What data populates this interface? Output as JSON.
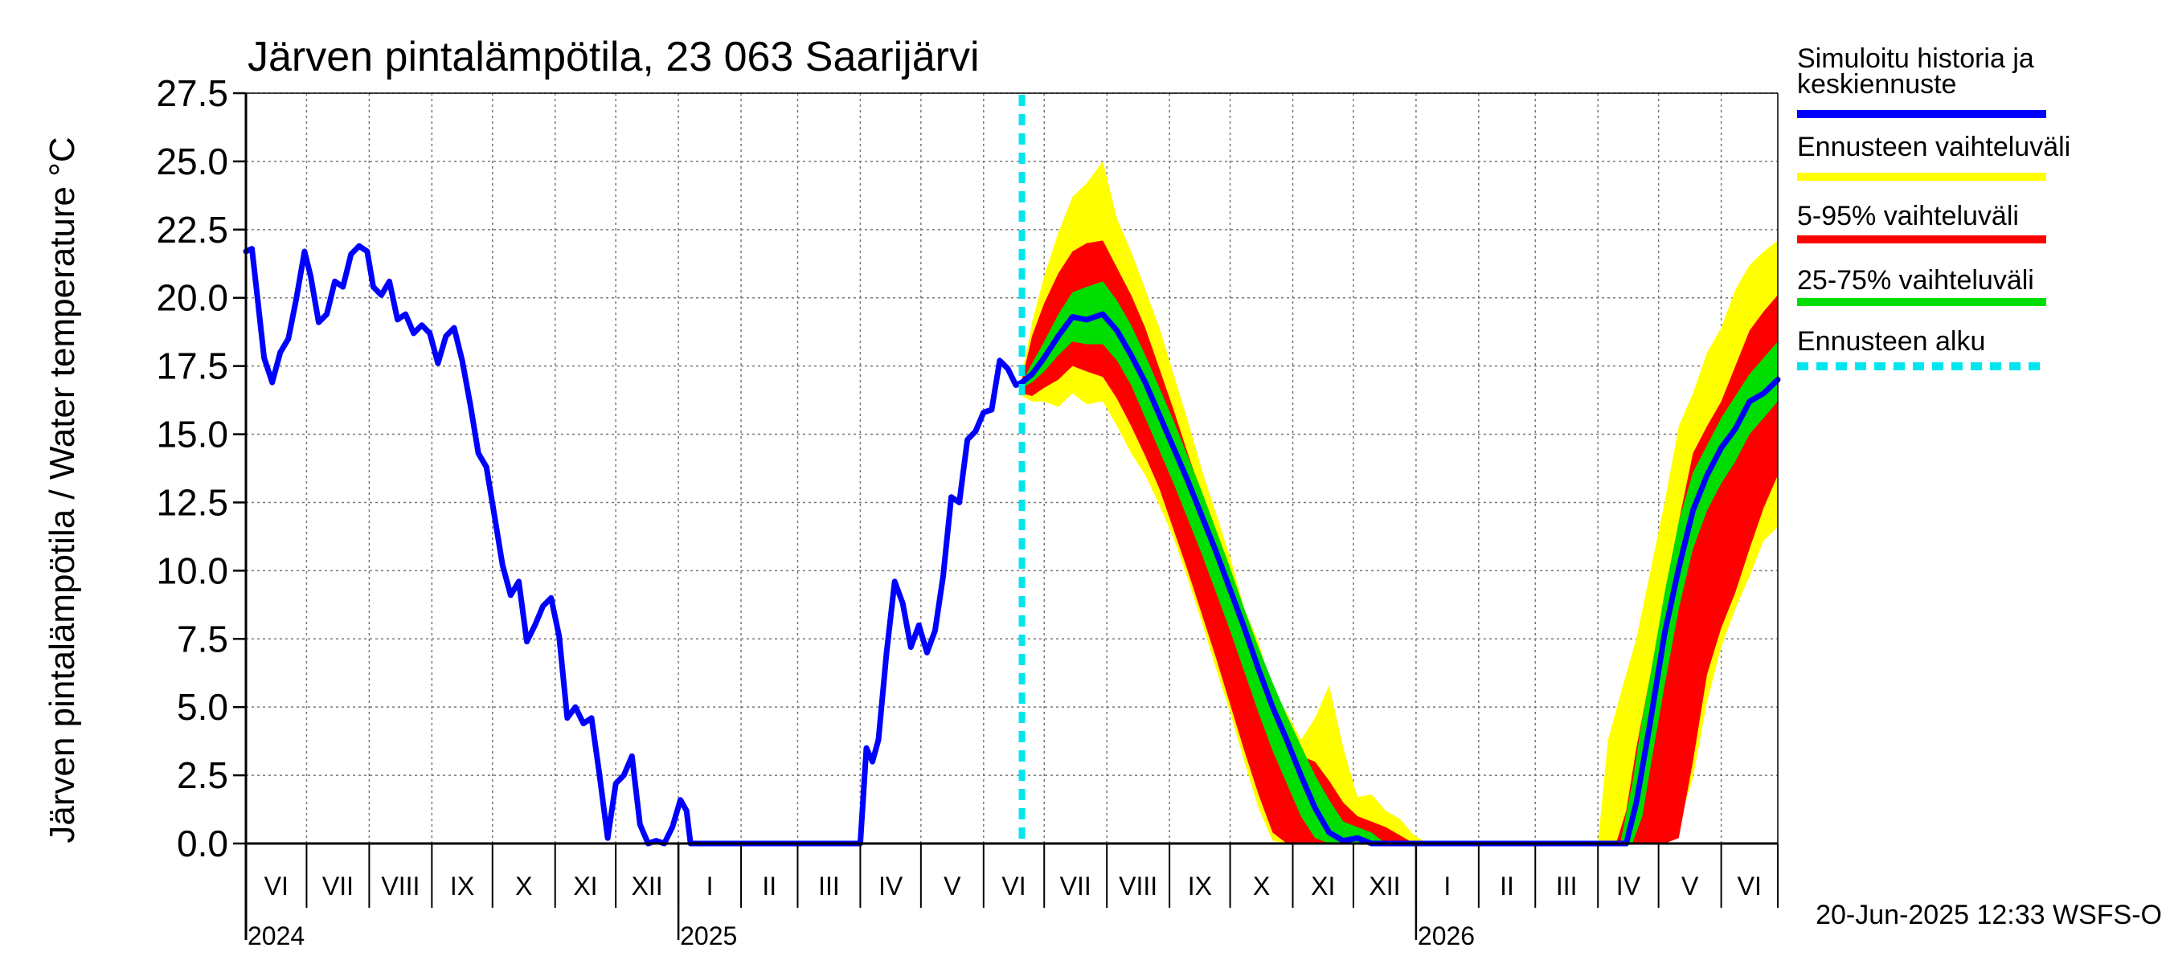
{
  "chart_data": {
    "type": "area",
    "title": "Järven pintalämpötila, 23 063 Saarijärvi",
    "ylabel": "Järven pintalämpötila / Water temperature °C",
    "xlabel": "",
    "ylim": [
      0,
      27.5
    ],
    "xlim": [
      "2024-06-01",
      "2026-06-29"
    ],
    "grid": true,
    "yticks": [
      "0.0",
      "2.5",
      "5.0",
      "7.5",
      "10.0",
      "12.5",
      "15.0",
      "17.5",
      "20.0",
      "22.5",
      "25.0",
      "27.5"
    ],
    "months": [
      {
        "label": "VI",
        "start": "2024-06-01",
        "end": "2024-07-01"
      },
      {
        "label": "VII",
        "start": "2024-07-01",
        "end": "2024-08-01"
      },
      {
        "label": "VIII",
        "start": "2024-08-01",
        "end": "2024-09-01"
      },
      {
        "label": "IX",
        "start": "2024-09-01",
        "end": "2024-10-01"
      },
      {
        "label": "X",
        "start": "2024-10-01",
        "end": "2024-11-01"
      },
      {
        "label": "XI",
        "start": "2024-11-01",
        "end": "2024-12-01"
      },
      {
        "label": "XII",
        "start": "2024-12-01",
        "end": "2025-01-01"
      },
      {
        "label": "I",
        "start": "2025-01-01",
        "end": "2025-02-01"
      },
      {
        "label": "II",
        "start": "2025-02-01",
        "end": "2025-03-01"
      },
      {
        "label": "III",
        "start": "2025-03-01",
        "end": "2025-04-01"
      },
      {
        "label": "IV",
        "start": "2025-04-01",
        "end": "2025-05-01"
      },
      {
        "label": "V",
        "start": "2025-05-01",
        "end": "2025-06-01"
      },
      {
        "label": "VI",
        "start": "2025-06-01",
        "end": "2025-07-01"
      },
      {
        "label": "VII",
        "start": "2025-07-01",
        "end": "2025-08-01"
      },
      {
        "label": "VIII",
        "start": "2025-08-01",
        "end": "2025-09-01"
      },
      {
        "label": "IX",
        "start": "2025-09-01",
        "end": "2025-10-01"
      },
      {
        "label": "X",
        "start": "2025-10-01",
        "end": "2025-11-01"
      },
      {
        "label": "XI",
        "start": "2025-11-01",
        "end": "2025-12-01"
      },
      {
        "label": "XII",
        "start": "2025-12-01",
        "end": "2026-01-01"
      },
      {
        "label": "I",
        "start": "2026-01-01",
        "end": "2026-02-01"
      },
      {
        "label": "II",
        "start": "2026-02-01",
        "end": "2026-03-01"
      },
      {
        "label": "III",
        "start": "2026-03-01",
        "end": "2026-04-01"
      },
      {
        "label": "IV",
        "start": "2026-04-01",
        "end": "2026-05-01"
      },
      {
        "label": "V",
        "start": "2026-05-01",
        "end": "2026-06-01"
      },
      {
        "label": "VI",
        "start": "2026-06-01",
        "end": "2026-06-29"
      }
    ],
    "years": [
      {
        "label": "2024",
        "date": "2024-06-01"
      },
      {
        "label": "2025",
        "date": "2025-01-01"
      },
      {
        "label": "2026",
        "date": "2026-01-01"
      }
    ],
    "forecast_start": "2025-06-20",
    "legend_position": "right",
    "legend": [
      {
        "label": "Simuloitu historia ja keskiennuste",
        "color": "#0000ff",
        "style": "solid"
      },
      {
        "label": "Ennusteen vaihteluväli",
        "color": "#ffff00",
        "style": "solid"
      },
      {
        "label": "5-95% vaihteluväli",
        "color": "#ff0000",
        "style": "solid"
      },
      {
        "label": "25-75% vaihteluväli",
        "color": "#00dd00",
        "style": "solid"
      },
      {
        "label": "Ennusteen alku",
        "color": "#00e5ee",
        "style": "dashed"
      }
    ],
    "footer": "20-Jun-2025 12:33 WSFS-O",
    "series": [
      {
        "name": "Simuloitu historia ja keskiennuste",
        "color": "#0000ff",
        "points": [
          [
            "2024-06-01",
            21.7
          ],
          [
            "2024-06-04",
            21.8
          ],
          [
            "2024-06-07",
            19.8
          ],
          [
            "2024-06-10",
            17.8
          ],
          [
            "2024-06-14",
            16.9
          ],
          [
            "2024-06-18",
            18.0
          ],
          [
            "2024-06-22",
            18.5
          ],
          [
            "2024-06-26",
            20.0
          ],
          [
            "2024-06-30",
            21.7
          ],
          [
            "2024-07-03",
            20.8
          ],
          [
            "2024-07-07",
            19.1
          ],
          [
            "2024-07-11",
            19.4
          ],
          [
            "2024-07-15",
            20.6
          ],
          [
            "2024-07-19",
            20.4
          ],
          [
            "2024-07-23",
            21.6
          ],
          [
            "2024-07-27",
            21.9
          ],
          [
            "2024-07-31",
            21.7
          ],
          [
            "2024-08-03",
            20.4
          ],
          [
            "2024-08-07",
            20.1
          ],
          [
            "2024-08-11",
            20.6
          ],
          [
            "2024-08-15",
            19.2
          ],
          [
            "2024-08-19",
            19.4
          ],
          [
            "2024-08-23",
            18.7
          ],
          [
            "2024-08-27",
            19.0
          ],
          [
            "2024-08-31",
            18.7
          ],
          [
            "2024-09-04",
            17.6
          ],
          [
            "2024-09-08",
            18.6
          ],
          [
            "2024-09-12",
            18.9
          ],
          [
            "2024-09-16",
            17.7
          ],
          [
            "2024-09-20",
            16.1
          ],
          [
            "2024-09-24",
            14.3
          ],
          [
            "2024-09-28",
            13.8
          ],
          [
            "2024-10-02",
            12.0
          ],
          [
            "2024-10-06",
            10.2
          ],
          [
            "2024-10-10",
            9.1
          ],
          [
            "2024-10-14",
            9.6
          ],
          [
            "2024-10-18",
            7.4
          ],
          [
            "2024-10-22",
            8.0
          ],
          [
            "2024-10-26",
            8.7
          ],
          [
            "2024-10-30",
            9.0
          ],
          [
            "2024-11-03",
            7.6
          ],
          [
            "2024-11-07",
            4.6
          ],
          [
            "2024-11-11",
            5.0
          ],
          [
            "2024-11-15",
            4.4
          ],
          [
            "2024-11-19",
            4.6
          ],
          [
            "2024-11-23",
            2.5
          ],
          [
            "2024-11-27",
            0.2
          ],
          [
            "2024-12-01",
            2.2
          ],
          [
            "2024-12-05",
            2.5
          ],
          [
            "2024-12-09",
            3.2
          ],
          [
            "2024-12-13",
            0.7
          ],
          [
            "2024-12-17",
            0.0
          ],
          [
            "2024-12-21",
            0.1
          ],
          [
            "2024-12-25",
            0.0
          ],
          [
            "2024-12-29",
            0.6
          ],
          [
            "2025-01-02",
            1.6
          ],
          [
            "2025-01-05",
            1.2
          ],
          [
            "2025-01-07",
            0.0
          ],
          [
            "2025-04-01",
            0.0
          ],
          [
            "2025-04-04",
            3.5
          ],
          [
            "2025-04-07",
            3.0
          ],
          [
            "2025-04-10",
            3.8
          ],
          [
            "2025-04-14",
            7.0
          ],
          [
            "2025-04-18",
            9.6
          ],
          [
            "2025-04-22",
            8.8
          ],
          [
            "2025-04-26",
            7.2
          ],
          [
            "2025-04-30",
            8.0
          ],
          [
            "2025-05-04",
            7.0
          ],
          [
            "2025-05-08",
            7.8
          ],
          [
            "2025-05-12",
            9.8
          ],
          [
            "2025-05-16",
            12.7
          ],
          [
            "2025-05-20",
            12.5
          ],
          [
            "2025-05-24",
            14.8
          ],
          [
            "2025-05-28",
            15.1
          ],
          [
            "2025-06-01",
            15.8
          ],
          [
            "2025-06-05",
            15.9
          ],
          [
            "2025-06-09",
            17.7
          ],
          [
            "2025-06-13",
            17.4
          ],
          [
            "2025-06-17",
            16.8
          ],
          [
            "2025-06-20",
            16.9
          ],
          [
            "2025-06-25",
            17.2
          ],
          [
            "2025-07-01",
            17.8
          ],
          [
            "2025-07-08",
            18.6
          ],
          [
            "2025-07-15",
            19.3
          ],
          [
            "2025-07-22",
            19.2
          ],
          [
            "2025-07-30",
            19.4
          ],
          [
            "2025-08-06",
            18.8
          ],
          [
            "2025-08-13",
            17.9
          ],
          [
            "2025-08-20",
            16.9
          ],
          [
            "2025-08-27",
            15.7
          ],
          [
            "2025-09-03",
            14.5
          ],
          [
            "2025-09-10",
            13.3
          ],
          [
            "2025-09-17",
            12.0
          ],
          [
            "2025-09-24",
            10.7
          ],
          [
            "2025-10-01",
            9.3
          ],
          [
            "2025-10-08",
            7.9
          ],
          [
            "2025-10-15",
            6.4
          ],
          [
            "2025-10-22",
            5.0
          ],
          [
            "2025-10-29",
            3.8
          ],
          [
            "2025-11-05",
            2.5
          ],
          [
            "2025-11-12",
            1.3
          ],
          [
            "2025-11-19",
            0.4
          ],
          [
            "2025-11-26",
            0.1
          ],
          [
            "2025-12-03",
            0.2
          ],
          [
            "2025-12-10",
            0.0
          ],
          [
            "2026-04-15",
            0.0
          ],
          [
            "2026-04-20",
            1.5
          ],
          [
            "2026-04-27",
            4.5
          ],
          [
            "2026-05-04",
            7.7
          ],
          [
            "2026-05-11",
            10.1
          ],
          [
            "2026-05-18",
            12.2
          ],
          [
            "2026-05-25",
            13.5
          ],
          [
            "2026-06-01",
            14.5
          ],
          [
            "2026-06-08",
            15.2
          ],
          [
            "2026-06-15",
            16.2
          ],
          [
            "2026-06-22",
            16.5
          ],
          [
            "2026-06-29",
            17.0
          ]
        ]
      },
      {
        "name": "Ennusteen vaihteluväli",
        "color": "#ffff00",
        "x": [
          "2025-06-20",
          "2025-06-25",
          "2025-07-01",
          "2025-07-08",
          "2025-07-15",
          "2025-07-22",
          "2025-07-30",
          "2025-08-06",
          "2025-08-13",
          "2025-08-20",
          "2025-08-27",
          "2025-09-03",
          "2025-09-10",
          "2025-09-17",
          "2025-09-24",
          "2025-10-01",
          "2025-10-08",
          "2025-10-15",
          "2025-10-22",
          "2025-10-29",
          "2025-11-05",
          "2025-11-12",
          "2025-11-19",
          "2025-11-26",
          "2025-12-03",
          "2025-12-10",
          "2025-12-17",
          "2025-12-24",
          "2025-12-31",
          "2026-01-07",
          "2026-04-01",
          "2026-04-06",
          "2026-04-13",
          "2026-04-20",
          "2026-04-27",
          "2026-05-04",
          "2026-05-11",
          "2026-05-18",
          "2026-05-25",
          "2026-06-01",
          "2026-06-08",
          "2026-06-15",
          "2026-06-22",
          "2026-06-29"
        ],
        "low": [
          16.4,
          16.2,
          16.2,
          16.0,
          16.5,
          16.1,
          16.2,
          15.3,
          14.3,
          13.5,
          12.4,
          11.2,
          9.7,
          8.1,
          6.4,
          4.8,
          3.0,
          1.3,
          0.1,
          0.0,
          0.0,
          0.0,
          0.0,
          0.0,
          0.0,
          0.0,
          0.0,
          0.0,
          0.0,
          0.0,
          0.0,
          0.0,
          0.0,
          0.0,
          0.0,
          0.0,
          0.7,
          2.4,
          5.2,
          7.2,
          8.6,
          9.8,
          11.1,
          11.6
        ],
        "high": [
          17.2,
          19.1,
          20.8,
          22.4,
          23.7,
          24.2,
          25.0,
          22.9,
          21.7,
          20.3,
          18.9,
          17.2,
          15.5,
          13.7,
          12.1,
          10.5,
          8.6,
          7.4,
          5.6,
          4.8,
          3.8,
          4.6,
          5.8,
          3.5,
          1.7,
          1.8,
          1.2,
          0.9,
          0.3,
          0.0,
          0.0,
          3.8,
          5.7,
          7.5,
          10.0,
          12.5,
          15.3,
          16.5,
          18.0,
          18.9,
          20.3,
          21.2,
          21.7,
          22.1
        ]
      },
      {
        "name": "5-95% vaihteluväli",
        "color": "#ff0000",
        "x": [
          "2025-06-20",
          "2025-06-25",
          "2025-07-01",
          "2025-07-08",
          "2025-07-15",
          "2025-07-22",
          "2025-07-30",
          "2025-08-06",
          "2025-08-13",
          "2025-08-20",
          "2025-08-27",
          "2025-09-03",
          "2025-09-10",
          "2025-09-17",
          "2025-09-24",
          "2025-10-01",
          "2025-10-08",
          "2025-10-15",
          "2025-10-22",
          "2025-10-29",
          "2025-11-05",
          "2025-11-12",
          "2025-11-19",
          "2025-11-26",
          "2025-12-03",
          "2025-12-10",
          "2025-12-17",
          "2025-12-24",
          "2025-12-31",
          "2026-04-10",
          "2026-04-15",
          "2026-04-20",
          "2026-04-27",
          "2026-05-04",
          "2026-05-11",
          "2026-05-18",
          "2026-05-25",
          "2026-06-01",
          "2026-06-08",
          "2026-06-15",
          "2026-06-22",
          "2026-06-29"
        ],
        "low": [
          16.5,
          16.4,
          16.7,
          17.0,
          17.5,
          17.3,
          17.1,
          16.3,
          15.3,
          14.2,
          13.0,
          11.5,
          10.0,
          8.4,
          6.8,
          5.1,
          3.4,
          1.8,
          0.4,
          0.0,
          0.0,
          0.0,
          0.0,
          0.0,
          0.0,
          0.0,
          0.0,
          0.0,
          0.0,
          0.0,
          0.0,
          0.0,
          0.0,
          0.0,
          0.2,
          3.0,
          6.2,
          7.9,
          9.2,
          10.8,
          12.3,
          13.5
        ],
        "high": [
          17.0,
          18.6,
          19.8,
          20.9,
          21.7,
          22.0,
          22.1,
          21.1,
          20.1,
          18.9,
          17.4,
          15.9,
          14.3,
          12.8,
          11.2,
          9.6,
          7.9,
          6.3,
          4.9,
          3.8,
          3.2,
          3.0,
          2.3,
          1.5,
          1.0,
          0.8,
          0.6,
          0.3,
          0.0,
          0.0,
          1.2,
          3.5,
          6.2,
          9.0,
          11.8,
          14.3,
          15.3,
          16.2,
          17.5,
          18.8,
          19.5,
          20.1
        ]
      },
      {
        "name": "25-75% vaihteluväli",
        "color": "#00dd00",
        "x": [
          "2025-06-20",
          "2025-06-25",
          "2025-07-01",
          "2025-07-08",
          "2025-07-15",
          "2025-07-22",
          "2025-07-30",
          "2025-08-06",
          "2025-08-13",
          "2025-08-20",
          "2025-08-27",
          "2025-09-03",
          "2025-09-10",
          "2025-09-17",
          "2025-09-24",
          "2025-10-01",
          "2025-10-08",
          "2025-10-15",
          "2025-10-22",
          "2025-10-29",
          "2025-11-05",
          "2025-11-12",
          "2025-11-19",
          "2025-11-26",
          "2025-12-03",
          "2025-12-10",
          "2025-12-17",
          "2026-04-12",
          "2026-04-18",
          "2026-04-23",
          "2026-04-27",
          "2026-05-04",
          "2026-05-11",
          "2026-05-18",
          "2026-05-25",
          "2026-06-01",
          "2026-06-08",
          "2026-06-15",
          "2026-06-22",
          "2026-06-29"
        ],
        "low": [
          16.7,
          16.9,
          17.3,
          17.9,
          18.4,
          18.3,
          18.3,
          17.7,
          16.8,
          15.6,
          14.4,
          13.2,
          11.9,
          10.6,
          9.2,
          7.8,
          6.3,
          4.8,
          3.4,
          2.2,
          1.0,
          0.2,
          0.0,
          0.0,
          0.0,
          0.0,
          0.0,
          0.0,
          0.0,
          1.0,
          2.8,
          5.8,
          8.6,
          10.8,
          12.2,
          13.2,
          14.0,
          15.0,
          15.6,
          16.2
        ],
        "high": [
          16.9,
          17.6,
          18.4,
          19.4,
          20.2,
          20.4,
          20.6,
          19.9,
          19.0,
          17.9,
          16.7,
          15.5,
          14.2,
          12.9,
          11.5,
          10.1,
          8.6,
          7.2,
          5.9,
          4.7,
          3.6,
          2.5,
          1.6,
          0.8,
          0.6,
          0.4,
          0.0,
          0.0,
          2.2,
          4.6,
          6.2,
          9.2,
          11.8,
          13.6,
          14.6,
          15.6,
          16.4,
          17.2,
          17.8,
          18.4
        ]
      }
    ]
  }
}
